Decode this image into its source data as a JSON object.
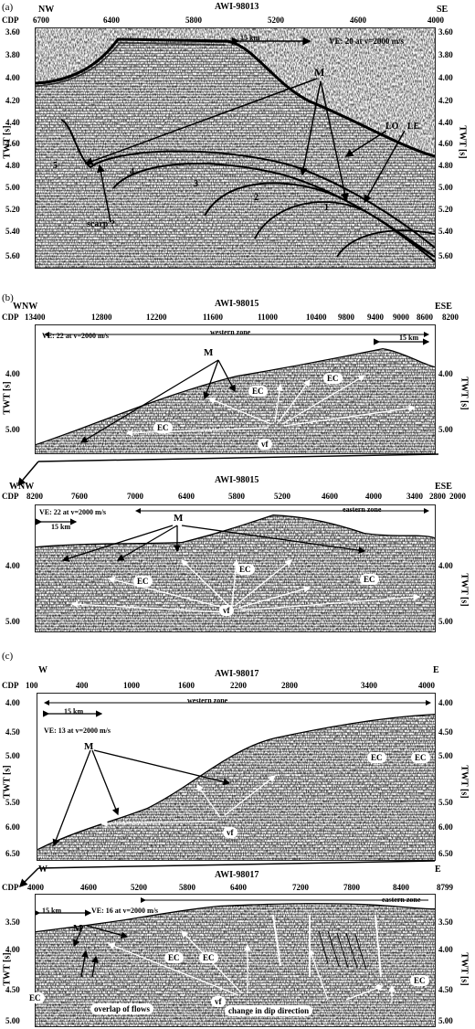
{
  "panel_a": {
    "tag": "(a)",
    "line": "AWI-98013",
    "left_dir": "NW",
    "right_dir": "SE",
    "cdp_label": "CDP",
    "cdp_ticks": [
      "6700",
      "6400",
      "5800",
      "5200",
      "4600",
      "4000"
    ],
    "scale_bar": "15 km",
    "ve": "VE: 20 at v=2000 m/s",
    "y_ticks": [
      "3.60",
      "3.80",
      "4.00",
      "4.20",
      "4.40",
      "4.60",
      "4.80",
      "5.00",
      "5.20",
      "5.40",
      "5.60"
    ],
    "y_title": "TWT [s]",
    "labels": {
      "M": "M",
      "LO": "LO",
      "LE": "LE",
      "scarp": "scarp ?",
      "n1": "1",
      "n2": "2",
      "n3": "3",
      "n4": "4",
      "n5": "5"
    }
  },
  "panel_b1": {
    "tag": "(b)",
    "line": "AWI-98015",
    "left_dir": "WNW",
    "right_dir": "ESE",
    "cdp_label": "CDP",
    "cdp_ticks": [
      "13400",
      "12800",
      "12200",
      "11600",
      "11000",
      "10400",
      "9800",
      "9400",
      "9000",
      "8600",
      "8200"
    ],
    "ve": "VE: 22 at v=2000 m/s",
    "zone": "western zone",
    "scale_bar": "15 km",
    "y_ticks": [
      "4.00",
      "5.00"
    ],
    "y_title": "TWT [s]",
    "labels": {
      "M": "M",
      "EC": "EC",
      "vf": "vf"
    }
  },
  "panel_b2": {
    "line": "AWI-98015",
    "left_dir": "WNW",
    "right_dir": "ESE",
    "cdp_label": "CDP",
    "cdp_ticks": [
      "8200",
      "7600",
      "7000",
      "6400",
      "5800",
      "5200",
      "4600",
      "4000",
      "3400",
      "2800",
      "2000"
    ],
    "ve": "VE: 22 at v=2000 m/s",
    "zone": "eastern zone",
    "scale_bar": "15 km",
    "y_ticks": [
      "4.00",
      "5.00"
    ],
    "y_title": "TWT [s]",
    "labels": {
      "M": "M",
      "EC": "EC",
      "vf": "vf"
    }
  },
  "panel_c1": {
    "tag": "(c)",
    "line": "AWI-98017",
    "left_dir": "W",
    "right_dir": "E",
    "cdp_label": "CDP",
    "cdp_ticks": [
      "100",
      "400",
      "1000",
      "1600",
      "2200",
      "2800",
      "3400",
      "4000"
    ],
    "zone": "western zone",
    "scale_bar": "15 km",
    "ve": "VE: 13 at v=2000 m/s",
    "y_ticks": [
      "4.00",
      "4.50",
      "5.00",
      "5.50",
      "6.00",
      "6.50"
    ],
    "y_title": "TWT [s]",
    "labels": {
      "M": "M",
      "EC": "EC",
      "vf": "vf"
    }
  },
  "panel_c2": {
    "line": "AWI-98017",
    "left_dir": "W",
    "right_dir": "E",
    "cdp_label": "CDP",
    "cdp_ticks": [
      "4000",
      "4600",
      "5200",
      "5800",
      "6400",
      "7200",
      "7800",
      "8400",
      "8799"
    ],
    "scale_bar": "15 km",
    "ve": "VE: 16 at v=2000 m/s",
    "zone": "eastern zone",
    "y_ticks": [
      "3.50",
      "4.00",
      "4.50",
      "5.00"
    ],
    "y_title": "TWT [s]",
    "labels": {
      "M": "M",
      "EC": "EC",
      "vf": "vf",
      "overlap": "overlap of flows",
      "dip": "change in dip direction"
    }
  }
}
